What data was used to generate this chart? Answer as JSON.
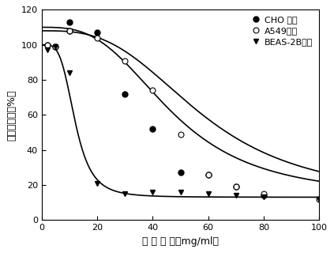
{
  "xlabel": "染 毒 浓 度（mg/ml）",
  "ylabel": "细胞存活率（%）",
  "xlim": [
    0,
    100
  ],
  "ylim": [
    0,
    120
  ],
  "yticks": [
    0,
    20,
    40,
    60,
    80,
    100,
    120
  ],
  "xticks": [
    0,
    20,
    40,
    60,
    80,
    100
  ],
  "legend_labels": [
    "CHO 细胞",
    "A549细胞",
    "BEAS-2B细胞"
  ],
  "CHO_x": [
    2,
    5,
    10,
    10,
    20,
    30,
    40,
    50,
    60,
    70,
    80
  ],
  "CHO_y": [
    100,
    99,
    113,
    108,
    107,
    72,
    52,
    27,
    26,
    19,
    14
  ],
  "A549_x": [
    2,
    5,
    10,
    20,
    30,
    40,
    50,
    60,
    70,
    80,
    100
  ],
  "A549_y": [
    100,
    99,
    108,
    104,
    91,
    74,
    49,
    26,
    19,
    15,
    12
  ],
  "BEAS_x": [
    2,
    5,
    10,
    20,
    30,
    40,
    50,
    60,
    70,
    80,
    100
  ],
  "BEAS_y": [
    97,
    99,
    84,
    21,
    15,
    16,
    16,
    15,
    14,
    13,
    12
  ],
  "background_color": "#ffffff",
  "line_color": "black",
  "line_width": 1.2,
  "marker_size": 5
}
